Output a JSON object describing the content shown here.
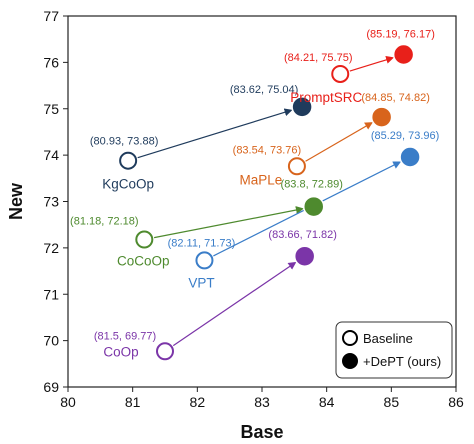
{
  "chart_data": {
    "type": "scatter",
    "xlabel": "Base",
    "ylabel": "New",
    "xlim": [
      80,
      86
    ],
    "ylim": [
      69,
      77
    ],
    "xticks": [
      80,
      81,
      82,
      83,
      84,
      85,
      86
    ],
    "yticks": [
      69,
      70,
      71,
      72,
      73,
      74,
      75,
      76,
      77
    ],
    "legend": {
      "placement": "bottom-right",
      "entries": [
        {
          "label": "Baseline",
          "marker": "hollow"
        },
        {
          "label": "+DePT (ours)",
          "marker": "filled"
        }
      ]
    },
    "series": [
      {
        "name": "KgCoOp",
        "color": "#1f3b5c",
        "baseline": {
          "x": 80.93,
          "y": 73.88,
          "coord_label": "(80.93, 73.88)"
        },
        "dept": {
          "x": 83.62,
          "y": 75.04,
          "coord_label": "(83.62, 75.04)"
        }
      },
      {
        "name": "PromptSRC",
        "color": "#e8201a",
        "baseline": {
          "x": 84.21,
          "y": 75.75,
          "coord_label": "(84.21, 75.75)"
        },
        "dept": {
          "x": 85.19,
          "y": 76.17,
          "coord_label": "(85.19, 76.17)"
        }
      },
      {
        "name": "MaPLe",
        "color": "#d8641c",
        "baseline": {
          "x": 83.54,
          "y": 73.76,
          "coord_label": "(83.54, 73.76)"
        },
        "dept": {
          "x": 84.85,
          "y": 74.82,
          "coord_label": "(84.85, 74.82)"
        }
      },
      {
        "name": "CoCoOp",
        "color": "#4e8a2e",
        "baseline": {
          "x": 81.18,
          "y": 72.18,
          "coord_label": "(81.18, 72.18)"
        },
        "dept": {
          "x": 83.8,
          "y": 72.89,
          "coord_label": "(83.8, 72.89)"
        }
      },
      {
        "name": "VPT",
        "color": "#3a7dc8",
        "baseline": {
          "x": 82.11,
          "y": 71.73,
          "coord_label": "(82.11, 71.73)"
        },
        "dept": {
          "x": 85.29,
          "y": 73.96,
          "coord_label": "(85.29, 73.96)"
        }
      },
      {
        "name": "CoOp",
        "color": "#7b35a8",
        "baseline": {
          "x": 81.5,
          "y": 69.77,
          "coord_label": "(81.5, 69.77)"
        },
        "dept": {
          "x": 83.66,
          "y": 71.82,
          "coord_label": "(83.66, 71.82)"
        }
      }
    ]
  }
}
